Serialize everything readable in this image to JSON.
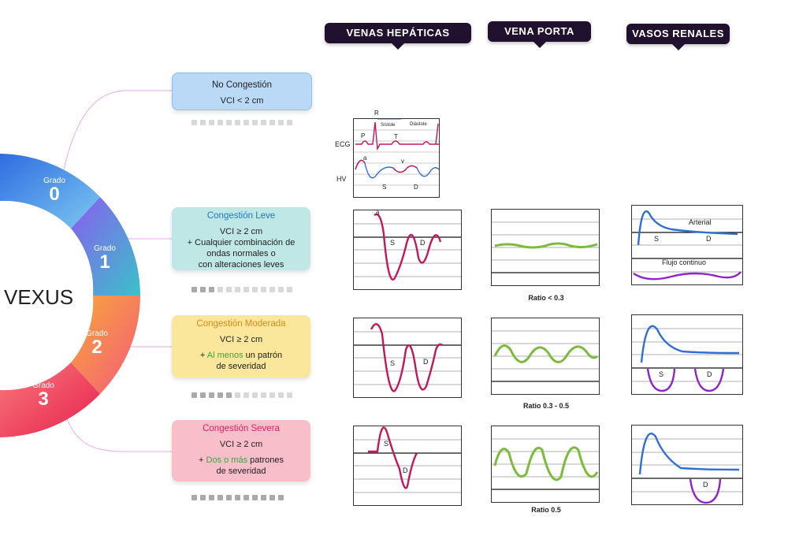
{
  "headers": {
    "hepaticas": "VENAS HEPÁTICAS",
    "porta": "VENA PORTA",
    "renales": "VASOS RENALES"
  },
  "center": {
    "title": "VEXUS"
  },
  "grades": [
    {
      "label": "Grado",
      "num": "0"
    },
    {
      "label": "Grado",
      "num": "1"
    },
    {
      "label": "Grado",
      "num": "2"
    },
    {
      "label": "Grado",
      "num": "3"
    }
  ],
  "cards": {
    "g0": {
      "title": "No Congestión",
      "line1": "VCI < 2 cm",
      "color": "#b9d9f7",
      "title_color": "#222222"
    },
    "g1": {
      "title": "Congestión Leve",
      "line1": "VCI ≥ 2 cm",
      "line2": "+ Cualquier combinación de",
      "line3": "ondas normales o",
      "line4": "con alteraciones leves",
      "color": "#bfe7e6",
      "title_color": "#2277cc"
    },
    "g2": {
      "title": "Congestión Moderada",
      "line1": "VCI ≥ 2 cm",
      "plus": "+ ",
      "highlight": "Al menos",
      "rest": " un patrón",
      "line3": "de severidad",
      "color": "#fbe79b",
      "title_color": "#e08a1a"
    },
    "g3": {
      "title": "Congestión Severa",
      "line1": "VCI ≥ 2 cm",
      "plus": "+ ",
      "highlight": "Dos o más",
      "rest": " patrones",
      "line3": "de severidad",
      "color": "#f8bfcb",
      "title_color": "#e0245e"
    }
  },
  "reference": {
    "R": "R",
    "sistole": "Sístole",
    "diastole": "Diástole",
    "P": "P",
    "T": "T",
    "ECG": "ECG",
    "HV": "HV",
    "a": "a",
    "v": "v",
    "S": "S",
    "D": "D"
  },
  "hepatic": {
    "a": "a",
    "S": "S",
    "D": "D"
  },
  "portal": {
    "ratio1": "Ratio < 0.3",
    "ratio2": "Ratio 0.3 - 0.5",
    "ratio3": "Ratio 0.5"
  },
  "renal": {
    "arterial": "Arterial",
    "S": "S",
    "D": "D",
    "flujo": "Flujo continuo"
  },
  "colors": {
    "red": "#c2185b",
    "blue": "#2e6fd6",
    "green": "#7dbb3c",
    "purple": "#8e24c9"
  }
}
